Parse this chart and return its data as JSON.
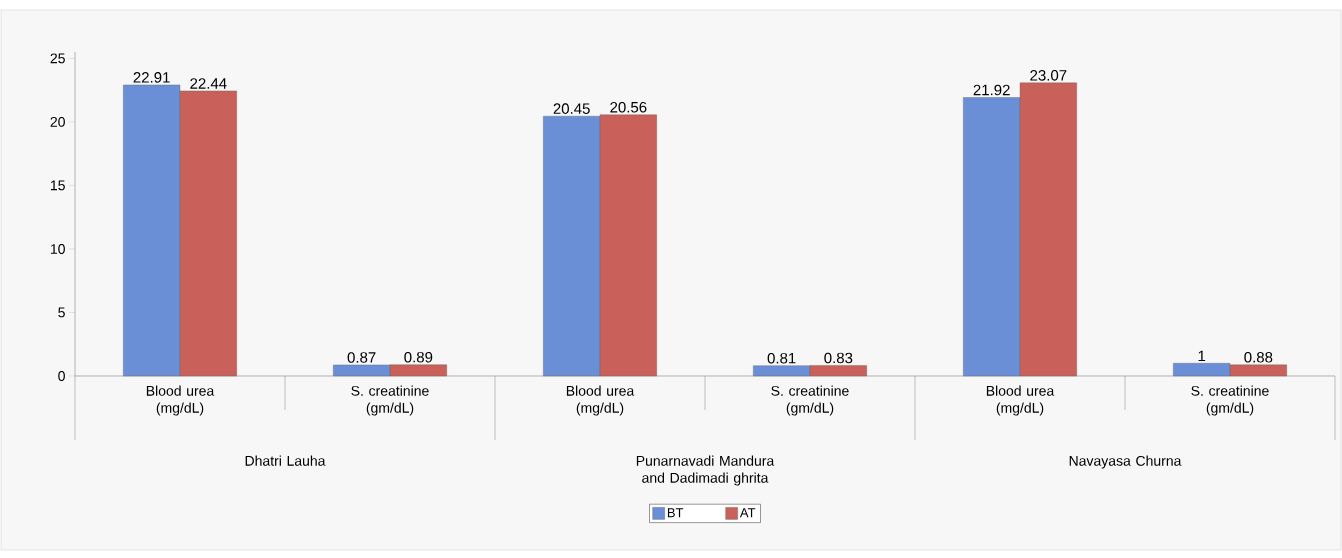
{
  "chart_data": {
    "type": "bar",
    "categories": [
      "Blood urea (mg/dL)",
      "S. creatinine (gm/dL)",
      "Blood urea (mg/dL)",
      "S. creatinine (gm/dL)",
      "Blood urea (mg/dL)",
      "S. creatinine (gm/dL)"
    ],
    "series": [
      {
        "name": "BT",
        "color": "#6a8fd6",
        "values": [
          22.91,
          0.87,
          20.45,
          0.81,
          21.92,
          1
        ]
      },
      {
        "name": "AT",
        "color": "#c9605a",
        "values": [
          22.44,
          0.89,
          20.56,
          0.83,
          23.07,
          0.88
        ]
      }
    ],
    "annotations": [
      "Dhatri Lauha",
      "Punarnavadi Mandura and Dadimadi ghrita",
      "Navayasa Churna"
    ],
    "ylim": [
      0,
      25.5
    ],
    "yticks": [
      0,
      5,
      10,
      15,
      20,
      25
    ],
    "data_labels": true,
    "legend": "bottom"
  }
}
